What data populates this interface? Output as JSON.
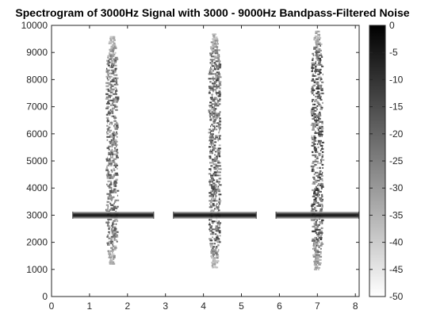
{
  "chart_data": {
    "type": "heatmap",
    "title": "Spectrogram of 3000Hz Signal with 3000 - 9000Hz Bandpass-Filtered Noise",
    "xlabel": "",
    "ylabel": "",
    "xlim": [
      0,
      8.1
    ],
    "ylim": [
      0,
      10000
    ],
    "x_ticks": [
      0,
      1,
      2,
      3,
      4,
      5,
      6,
      7,
      8
    ],
    "y_ticks": [
      0,
      1000,
      2000,
      3000,
      4000,
      5000,
      6000,
      7000,
      8000,
      9000,
      10000
    ],
    "grid": false,
    "colormap": "gray",
    "color_range": [
      -50,
      0
    ],
    "colorbar": {
      "placement": "right",
      "ticks": [
        0,
        -5,
        -10,
        -15,
        -20,
        -25,
        -30,
        -35,
        -40,
        -45,
        -50
      ]
    },
    "tone_segments": [
      {
        "x_start": 0.55,
        "x_end": 2.7,
        "frequency": 3000,
        "level": -5
      },
      {
        "x_start": 3.2,
        "x_end": 5.4,
        "frequency": 3000,
        "level": -5
      },
      {
        "x_start": 5.9,
        "x_end": 8.1,
        "frequency": 3000,
        "level": -5
      }
    ],
    "noise_bursts": [
      {
        "x_center": 1.6,
        "freq_low": 1200,
        "freq_high": 9600,
        "level_min": -45,
        "level_max": -12
      },
      {
        "x_center": 4.3,
        "freq_low": 1100,
        "freq_high": 9700,
        "level_min": -45,
        "level_max": -10
      },
      {
        "x_center": 7.0,
        "freq_low": 1000,
        "freq_high": 9800,
        "level_min": -45,
        "level_max": -8
      }
    ]
  }
}
